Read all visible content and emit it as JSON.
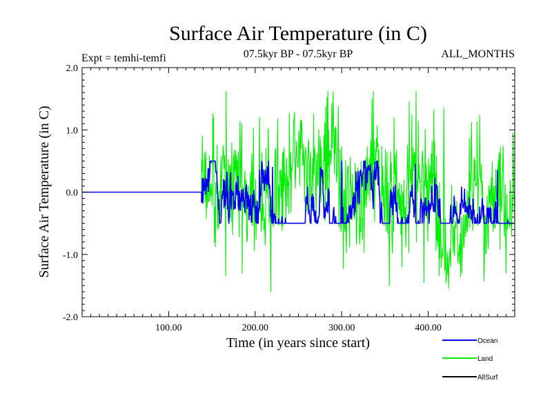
{
  "chart_data": {
    "type": "line",
    "title": "Surface Air Temperature (in C)",
    "subtitle": "07.5kyr BP - 07.5kyr BP",
    "experiment": "Expt = temhi-temfi",
    "months_label": "ALL_MONTHS",
    "xlabel": "Time (in years since start)",
    "ylabel": "Surface Air Temperature (in C)",
    "xlim": [
      0,
      500
    ],
    "ylim": [
      -2.0,
      2.0
    ],
    "x_ticks": [
      100,
      200,
      300,
      400
    ],
    "x_tick_labels": [
      "100.00",
      "200.00",
      "300.00",
      "400.00"
    ],
    "y_ticks": [
      2.0,
      1.0,
      0.0,
      -1.0,
      -2.0
    ],
    "y_tick_labels": [
      "2.0",
      "1.0",
      "0.0",
      "-1.0",
      "-2.0"
    ],
    "legend_position": "bottom-right",
    "series_start_year": 138,
    "series": [
      {
        "name": "Land",
        "color": "#00ee00",
        "constant_before_start": 0.0,
        "approx_std": 0.42,
        "min": -1.6,
        "max": 1.62,
        "approx_peaks": [
          [
            139,
            0.9
          ],
          [
            152,
            1.2
          ],
          [
            166,
            -1.35
          ],
          [
            185,
            -1.3
          ],
          [
            205,
            1.2
          ],
          [
            218,
            -1.6
          ],
          [
            283,
            1.52
          ],
          [
            296,
            1.38
          ],
          [
            335,
            1.5
          ],
          [
            355,
            -1.5
          ],
          [
            378,
            1.45
          ],
          [
            386,
            1.62
          ],
          [
            395,
            -1.45
          ],
          [
            418,
            1.35
          ],
          [
            426,
            -1.2
          ],
          [
            450,
            1.12
          ],
          [
            465,
            -1.1
          ],
          [
            490,
            -1.3
          ],
          [
            498,
            0.95
          ]
        ]
      },
      {
        "name": "Ocean",
        "color": "#0000ee",
        "constant_before_start": 0.0,
        "approx_std": 0.12,
        "min": -0.5,
        "max": 0.5,
        "approx_peaks": [
          [
            139,
            0.22
          ],
          [
            205,
            0.35
          ],
          [
            220,
            0.4
          ],
          [
            262,
            -0.35
          ],
          [
            300,
            0.5
          ],
          [
            352,
            -0.5
          ],
          [
            385,
            0.45
          ],
          [
            480,
            0.35
          ],
          [
            492,
            -0.45
          ]
        ]
      },
      {
        "name": "AllSurf",
        "color": "#000000",
        "note": "drawn beneath other series, not visible"
      }
    ],
    "legend": [
      "Ocean",
      "Land",
      "AllSurf"
    ]
  }
}
